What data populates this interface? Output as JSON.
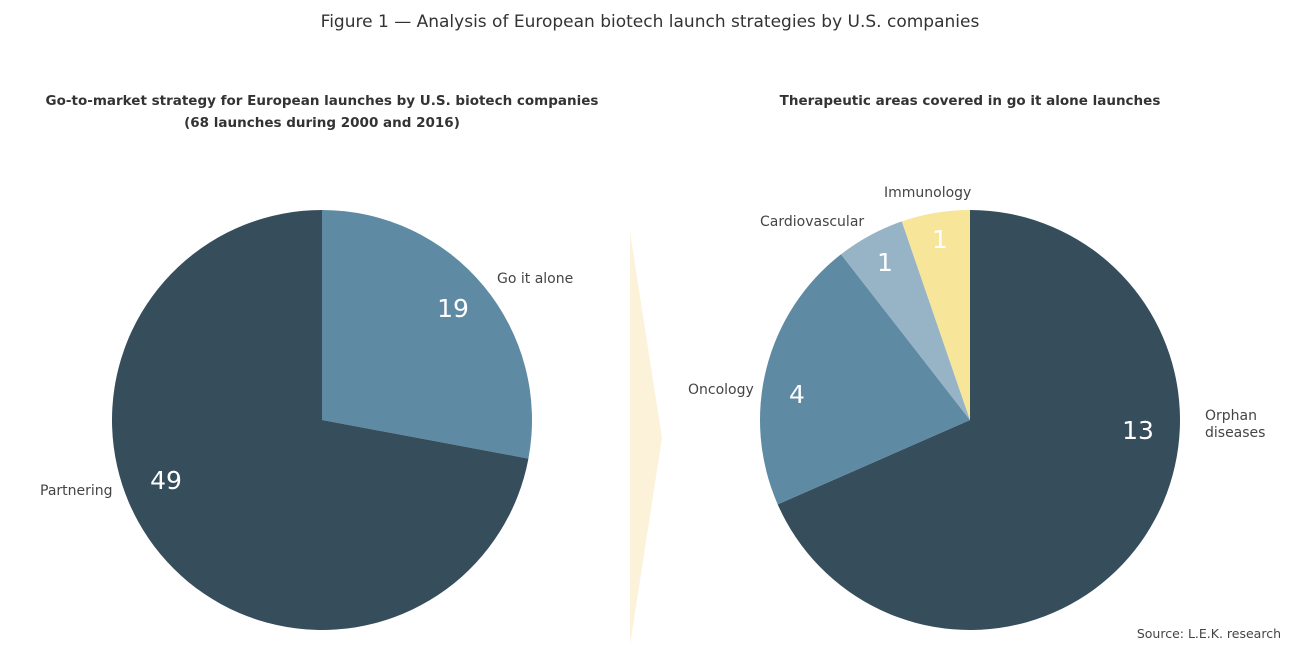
{
  "title": "Figure 1 — Analysis of European biotech launch strategies by U.S. companies",
  "source": "Source: L.E.K. research",
  "chart_data": [
    {
      "type": "pie",
      "title": "Go-to-market strategy for European launches by U.S. biotech companies",
      "subtitle": "(68 launches during 2000 and 2016)",
      "slices": [
        {
          "label": "Go it alone",
          "value": 19,
          "color": "#5e8aa3"
        },
        {
          "label": "Partnering",
          "value": 49,
          "color": "#364d5c"
        }
      ]
    },
    {
      "type": "pie",
      "title": "Therapeutic areas covered in go it alone launches",
      "slices": [
        {
          "label": "Orphan diseases",
          "value": 13,
          "color": "#364d5c"
        },
        {
          "label": "Oncology",
          "value": 4,
          "color": "#5e8aa3"
        },
        {
          "label": "Cardiovascular",
          "value": 1,
          "color": "#97b3c6"
        },
        {
          "label": "Immunology",
          "value": 1,
          "color": "#f7e59a"
        }
      ]
    }
  ],
  "arrow_color": "#fcf2da"
}
